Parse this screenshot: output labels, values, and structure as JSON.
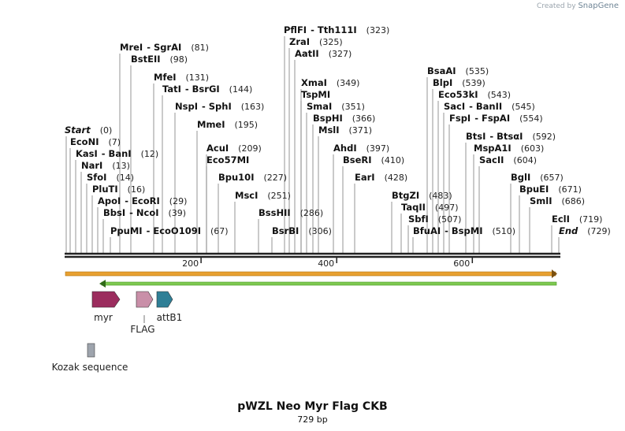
{
  "credit": {
    "prefix": "Created by",
    "brand": "SnapGene"
  },
  "title": "pWZL Neo Myr Flag CKB",
  "length_text": "729 bp",
  "enzymes": [
    {
      "name": "PflFI",
      "partner": "Tth111I",
      "pos": 323
    },
    {
      "name": "ZraI",
      "pos": 325
    },
    {
      "name": "AatII",
      "pos": 327
    },
    {
      "name": "MreI",
      "partner": "SgrAI",
      "pos": 81
    },
    {
      "name": "BstEII",
      "pos": 98
    },
    {
      "name": "MfeI",
      "pos": 131
    },
    {
      "name": "TatI",
      "partner": "BsrGI",
      "pos": 144
    },
    {
      "name": "NspI",
      "partner": "SphI",
      "pos": 163
    },
    {
      "name": "MmeI",
      "pos": 195
    },
    {
      "name": "Start",
      "pos": 0,
      "italic": true
    },
    {
      "name": "EcoNI",
      "pos": 7
    },
    {
      "name": "KasI",
      "partner": "BanI",
      "pos": 12
    },
    {
      "name": "NarI",
      "pos": 13
    },
    {
      "name": "SfoI",
      "pos": 14
    },
    {
      "name": "PluTI",
      "pos": 16
    },
    {
      "name": "ApoI",
      "partner": "EcoRI",
      "pos": 29
    },
    {
      "name": "BbsI",
      "partner": "NcoI",
      "pos": 39
    },
    {
      "name": "PpuMI",
      "partner": "EcoO109I",
      "pos": 67
    },
    {
      "name": "AcuI",
      "pos": 209
    },
    {
      "name": "Eco57MI",
      "pos": null
    },
    {
      "name": "Bpu10I",
      "pos": 227
    },
    {
      "name": "MscI",
      "pos": 251
    },
    {
      "name": "BssHII",
      "pos": 286
    },
    {
      "name": "BsrBI",
      "pos": 306
    },
    {
      "name": "XmaI",
      "pos": 349
    },
    {
      "name": "TspMI",
      "pos": null
    },
    {
      "name": "SmaI",
      "pos": 351
    },
    {
      "name": "BspHI",
      "pos": 366
    },
    {
      "name": "MslI",
      "pos": 371
    },
    {
      "name": "AhdI",
      "pos": 397
    },
    {
      "name": "BseRI",
      "pos": 410
    },
    {
      "name": "EarI",
      "pos": 428
    },
    {
      "name": "BsaAI",
      "pos": 535
    },
    {
      "name": "BlpI",
      "pos": 539
    },
    {
      "name": "Eco53kI",
      "pos": 543
    },
    {
      "name": "SacI",
      "partner": "BanII",
      "pos": 545
    },
    {
      "name": "FspI",
      "partner": "FspAI",
      "pos": 554
    },
    {
      "name": "BtsI",
      "partner": "BtsαI",
      "pos": 592
    },
    {
      "name": "MspA1I",
      "pos": 603
    },
    {
      "name": "SacII",
      "pos": 604
    },
    {
      "name": "BglI",
      "pos": 657
    },
    {
      "name": "BpuEI",
      "pos": 671
    },
    {
      "name": "SmlI",
      "pos": 686
    },
    {
      "name": "BtgZI",
      "pos": 483
    },
    {
      "name": "TaqII",
      "pos": 497
    },
    {
      "name": "SbfI",
      "pos": 507
    },
    {
      "name": "BfuAI",
      "partner": "BspMI",
      "pos": 510
    },
    {
      "name": "EclI",
      "pos": 719
    },
    {
      "name": "End",
      "pos": 729,
      "italic": true
    }
  ],
  "ticks": [
    200,
    400,
    600
  ],
  "features": [
    {
      "name": "myr",
      "color": "#9b2d5e"
    },
    {
      "name": "FLAG",
      "color": "#c98fa8"
    },
    {
      "name": "attB1",
      "color": "#2f7f96"
    },
    {
      "name": "Kozak sequence",
      "color": "#9ea4ad"
    }
  ],
  "colors": {
    "orange_bar": "#e8a030",
    "green_bar": "#7ec850"
  }
}
